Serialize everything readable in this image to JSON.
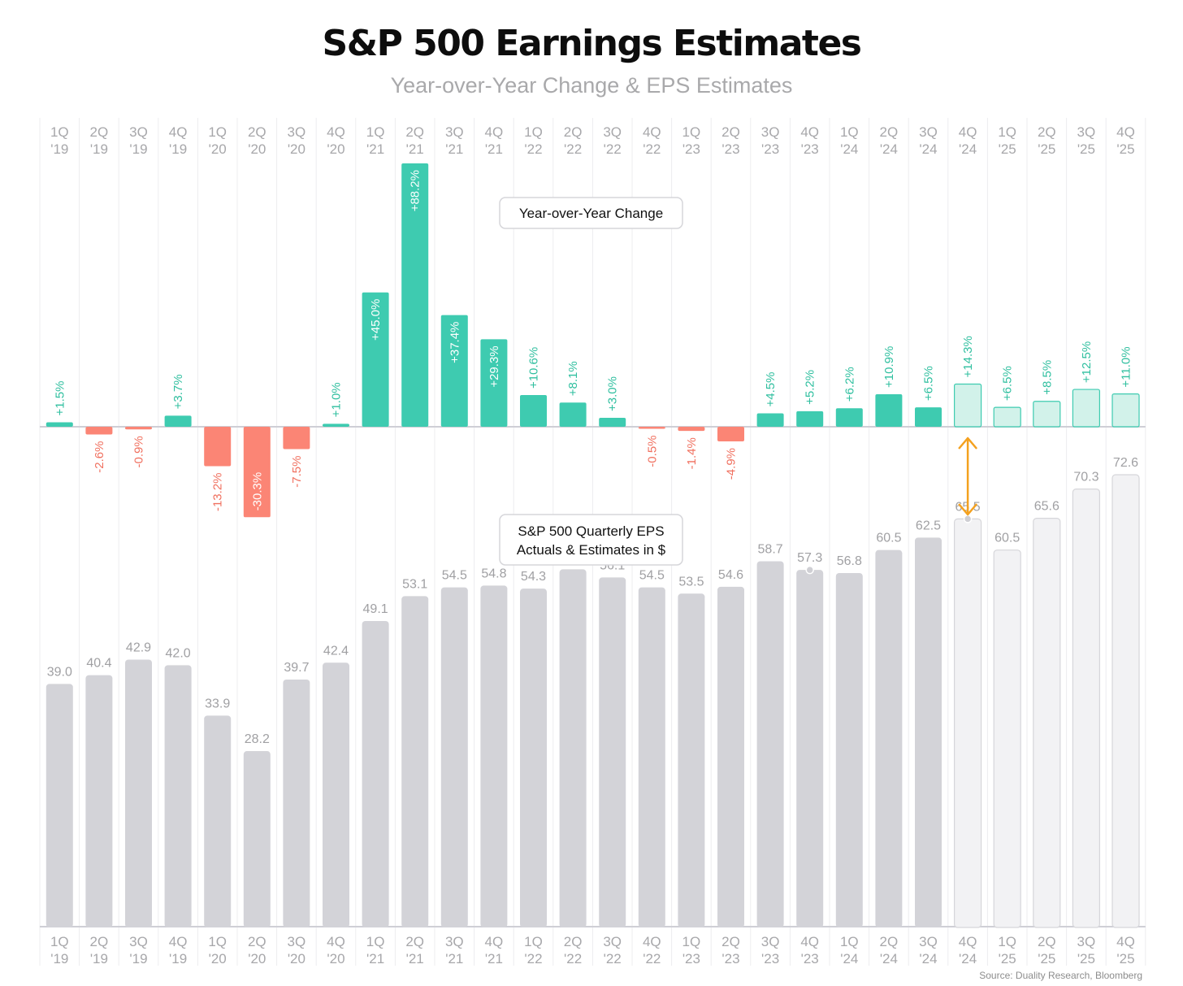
{
  "title": "S&P 500 Earnings Estimates",
  "subtitle": "Year-over-Year Change & EPS Estimates",
  "source": "Source: Duality Research, Bloomberg",
  "annotations": {
    "yoy_box": "Year-over-Year Change",
    "eps_box_line1": "S&P 500 Quarterly EPS",
    "eps_box_line2": "Actuals & Estimates in $"
  },
  "colors": {
    "positive": "#3ecbb0",
    "positive_estimate": "#d2f2ea",
    "negative": "#fb8575",
    "eps_actual": "#d3d3d8",
    "eps_estimate": "#f2f2f4",
    "arrow": "#f4a11f"
  },
  "chart_data": [
    {
      "type": "bar",
      "title": "Year-over-Year Change",
      "categories": [
        "1Q '19",
        "2Q '19",
        "3Q '19",
        "4Q '19",
        "1Q '20",
        "2Q '20",
        "3Q '20",
        "4Q '20",
        "1Q '21",
        "2Q '21",
        "3Q '21",
        "4Q '21",
        "1Q '22",
        "2Q '22",
        "3Q '22",
        "4Q '22",
        "1Q '23",
        "2Q '23",
        "3Q '23",
        "4Q '23",
        "1Q '24",
        "2Q '24",
        "3Q '24",
        "4Q '24",
        "1Q '25",
        "2Q '25",
        "3Q '25",
        "4Q '25"
      ],
      "values": [
        1.5,
        -2.6,
        -0.9,
        3.7,
        -13.2,
        -30.3,
        -7.5,
        1.0,
        45.0,
        88.2,
        37.4,
        29.3,
        10.6,
        8.1,
        3.0,
        -0.5,
        -1.4,
        -4.9,
        4.5,
        5.2,
        6.2,
        10.9,
        6.5,
        14.3,
        6.5,
        8.5,
        12.5,
        11.0
      ],
      "labels": [
        "+1.5%",
        "-2.6%",
        "-0.9%",
        "+3.7%",
        "-13.2%",
        "-30.3%",
        "-7.5%",
        "+1.0%",
        "+45.0%",
        "+88.2%",
        "+37.4%",
        "+29.3%",
        "+10.6%",
        "+8.1%",
        "+3.0%",
        "-0.5%",
        "-1.4%",
        "-4.9%",
        "+4.5%",
        "+5.2%",
        "+6.2%",
        "+10.9%",
        "+6.5%",
        "+14.3%",
        "+6.5%",
        "+8.5%",
        "+12.5%",
        "+11.0%"
      ],
      "estimate_from": "4Q '24"
    },
    {
      "type": "bar",
      "title": "S&P 500 Quarterly EPS Actuals & Estimates in $",
      "categories": [
        "1Q '19",
        "2Q '19",
        "3Q '19",
        "4Q '19",
        "1Q '20",
        "2Q '20",
        "3Q '20",
        "4Q '20",
        "1Q '21",
        "2Q '21",
        "3Q '21",
        "4Q '21",
        "1Q '22",
        "2Q '22",
        "3Q '22",
        "4Q '22",
        "1Q '23",
        "2Q '23",
        "3Q '23",
        "4Q '23",
        "1Q '24",
        "2Q '24",
        "3Q '24",
        "4Q '24",
        "1Q '25",
        "2Q '25",
        "3Q '25",
        "4Q '25"
      ],
      "values": [
        39.0,
        40.4,
        42.9,
        42.0,
        33.9,
        28.2,
        39.7,
        42.4,
        49.1,
        53.1,
        54.5,
        54.8,
        54.3,
        57.4,
        56.1,
        54.5,
        53.5,
        54.6,
        58.7,
        57.3,
        56.8,
        60.5,
        62.5,
        65.5,
        60.5,
        65.6,
        70.3,
        72.6
      ],
      "labels": [
        "39.0",
        "40.4",
        "42.9",
        "42.0",
        "33.9",
        "28.2",
        "39.7",
        "42.4",
        "49.1",
        "53.1",
        "54.5",
        "54.8",
        "54.3",
        "57.4",
        "56.1",
        "54.5",
        "53.5",
        "54.6",
        "58.7",
        "57.3",
        "56.8",
        "60.5",
        "62.5",
        "65.5",
        "60.5",
        "65.6",
        "70.3",
        "72.6"
      ],
      "estimate_from": "4Q '24"
    }
  ],
  "quarters": [
    {
      "q": "1Q",
      "y": "'19"
    },
    {
      "q": "2Q",
      "y": "'19"
    },
    {
      "q": "3Q",
      "y": "'19"
    },
    {
      "q": "4Q",
      "y": "'19"
    },
    {
      "q": "1Q",
      "y": "'20"
    },
    {
      "q": "2Q",
      "y": "'20"
    },
    {
      "q": "3Q",
      "y": "'20"
    },
    {
      "q": "4Q",
      "y": "'20"
    },
    {
      "q": "1Q",
      "y": "'21"
    },
    {
      "q": "2Q",
      "y": "'21"
    },
    {
      "q": "3Q",
      "y": "'21"
    },
    {
      "q": "4Q",
      "y": "'21"
    },
    {
      "q": "1Q",
      "y": "'22"
    },
    {
      "q": "2Q",
      "y": "'22"
    },
    {
      "q": "3Q",
      "y": "'22"
    },
    {
      "q": "4Q",
      "y": "'22"
    },
    {
      "q": "1Q",
      "y": "'23"
    },
    {
      "q": "2Q",
      "y": "'23"
    },
    {
      "q": "3Q",
      "y": "'23"
    },
    {
      "q": "4Q",
      "y": "'23"
    },
    {
      "q": "1Q",
      "y": "'24"
    },
    {
      "q": "2Q",
      "y": "'24"
    },
    {
      "q": "3Q",
      "y": "'24"
    },
    {
      "q": "4Q",
      "y": "'24"
    },
    {
      "q": "1Q",
      "y": "'25"
    },
    {
      "q": "2Q",
      "y": "'25"
    },
    {
      "q": "3Q",
      "y": "'25"
    },
    {
      "q": "4Q",
      "y": "'25"
    }
  ]
}
